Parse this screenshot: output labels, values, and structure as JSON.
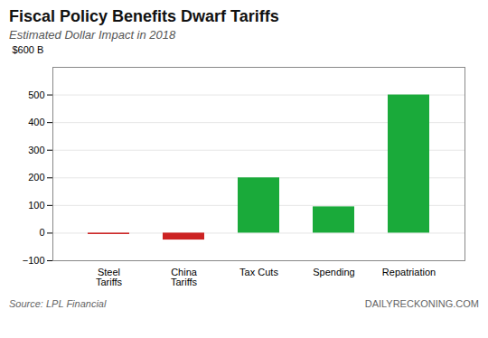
{
  "chart_data": {
    "type": "bar",
    "title": "Fiscal Policy Benefits Dwarf Tariffs",
    "subtitle": "Estimated Dollar Impact in 2018",
    "ylabel": "$600 B",
    "categories": [
      "Steel\nTariffs",
      "China\nTariffs",
      "Tax Cuts",
      "Spending",
      "Repatriation"
    ],
    "values": [
      -5,
      -25,
      200,
      95,
      500
    ],
    "colors": [
      "#cc2222",
      "#cc2222",
      "#1aaa3a",
      "#1aaa3a",
      "#1aaa3a"
    ],
    "ylim": [
      -100,
      600
    ],
    "yticks": [
      -100,
      0,
      100,
      200,
      300,
      400,
      500
    ],
    "grid": true,
    "annotations": [
      "Source: LPL Financial",
      "DAILYRECKONING.COM"
    ]
  }
}
